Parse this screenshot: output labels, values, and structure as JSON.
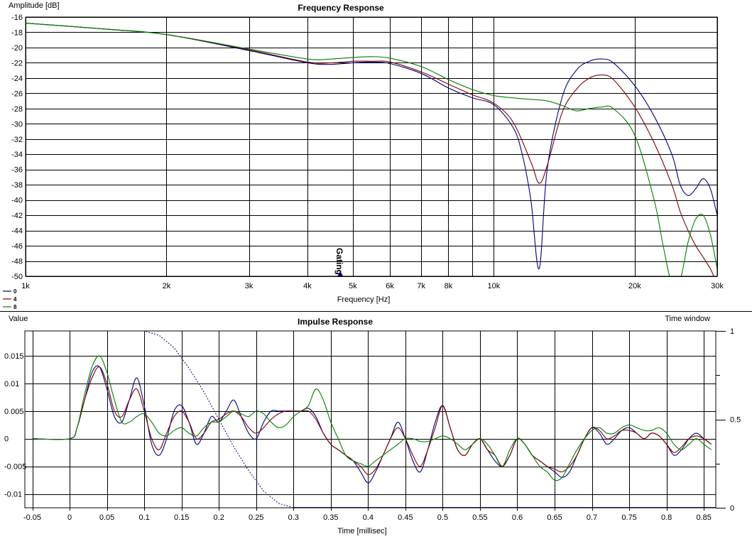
{
  "chart_data": [
    {
      "type": "line",
      "title": "Frequency Response",
      "ylabel": "Amplitude [dB]",
      "xlabel": "Frequency [Hz]",
      "x_scale": "log",
      "xlim": [
        1000,
        30000
      ],
      "ylim": [
        -50,
        -16
      ],
      "x_ticks": [
        1000,
        2000,
        3000,
        4000,
        5000,
        6000,
        7000,
        8000,
        9000,
        10000,
        20000,
        30000
      ],
      "x_tick_labels": [
        "1k",
        "2k",
        "3k",
        "4k",
        "5k",
        "6k",
        "7k",
        "8k",
        "",
        "10k",
        "20k",
        "30k"
      ],
      "y_ticks": [
        -16,
        -18,
        -20,
        -22,
        -24,
        -26,
        -28,
        -30,
        -32,
        -34,
        -36,
        -38,
        -40,
        -42,
        -44,
        -46,
        -48,
        -50
      ],
      "y_tick_labels": [
        "-16",
        "-18",
        "-20",
        "-22",
        "-24",
        "-26",
        "-28",
        "-30",
        "-32",
        "-34",
        "-36",
        "-38",
        "-40",
        "-42",
        "-44",
        "-46",
        "-48",
        "-50"
      ],
      "grid": true,
      "marker": {
        "label": "Gating",
        "x": 4700,
        "color": "#00008b"
      },
      "legend": {
        "position": "bottom-left",
        "entries": [
          "0",
          "4",
          "8"
        ]
      },
      "series": [
        {
          "name": "0",
          "color": "#00007f",
          "x": [
            1000,
            1500,
            2000,
            3000,
            4000,
            4500,
            5000,
            5500,
            6000,
            7000,
            8000,
            9000,
            10000,
            11000,
            11500,
            12000,
            12500,
            13000,
            14000,
            15000,
            16000,
            17000,
            18000,
            20000,
            22000,
            24000,
            25000,
            26000,
            27000,
            28000,
            29000,
            30000
          ],
          "y": [
            -16.8,
            -17.6,
            -18.3,
            -20.4,
            -22.0,
            -22.2,
            -22.0,
            -21.9,
            -22.1,
            -23.4,
            -25.3,
            -26.6,
            -27.5,
            -30.5,
            -34.0,
            -40.0,
            -49.0,
            -36.0,
            -26.5,
            -23.0,
            -21.8,
            -21.5,
            -22.0,
            -25.0,
            -29.0,
            -34.0,
            -38.0,
            -39.4,
            -38.5,
            -37.2,
            -38.5,
            -42.0
          ]
        },
        {
          "name": "4",
          "color": "#7f0000",
          "x": [
            1000,
            1500,
            2000,
            3000,
            4000,
            4500,
            5000,
            5500,
            6000,
            7000,
            8000,
            9000,
            10000,
            11000,
            12000,
            12500,
            13000,
            14000,
            15000,
            16000,
            17000,
            18000,
            20000,
            22000,
            24000,
            25000,
            26000,
            27000,
            28000,
            29000,
            29500
          ],
          "y": [
            -16.8,
            -17.6,
            -18.3,
            -20.3,
            -21.9,
            -22.0,
            -21.8,
            -21.8,
            -21.9,
            -23.2,
            -24.8,
            -26.2,
            -27.3,
            -29.8,
            -35.0,
            -37.8,
            -35.5,
            -28.5,
            -25.5,
            -24.0,
            -23.6,
            -24.2,
            -27.8,
            -32.5,
            -38.0,
            -41.5,
            -44.0,
            -46.0,
            -47.5,
            -49.0,
            -50.0
          ]
        },
        {
          "name": "8",
          "color": "#007f00",
          "x": [
            1000,
            1500,
            2000,
            3000,
            4000,
            4500,
            5000,
            5500,
            6000,
            7000,
            8000,
            9000,
            10000,
            11000,
            12000,
            13000,
            14000,
            15000,
            16000,
            17000,
            18000,
            20000,
            22000,
            23000,
            24000,
            25000,
            26000,
            27000,
            28000,
            29000,
            30000
          ],
          "y": [
            -16.8,
            -17.6,
            -18.3,
            -20.2,
            -21.5,
            -21.5,
            -21.3,
            -21.2,
            -21.4,
            -22.5,
            -24.2,
            -25.5,
            -26.3,
            -26.6,
            -26.8,
            -27.0,
            -27.6,
            -28.3,
            -28.0,
            -27.8,
            -28.0,
            -31.5,
            -40.0,
            -46.0,
            -51.0,
            -50.5,
            -45.5,
            -42.5,
            -42.0,
            -44.5,
            -49.0
          ]
        }
      ]
    },
    {
      "type": "line",
      "title": "Impulse Response",
      "ylabel": "Value",
      "xlabel": "Time [millisec]",
      "y2label": "Time window",
      "xlim": [
        -0.06,
        0.866
      ],
      "ylim": [
        -0.0125,
        0.0195
      ],
      "y2lim": [
        0,
        1
      ],
      "x_ticks": [
        -0.05,
        0,
        0.05,
        0.1,
        0.15,
        0.2,
        0.25,
        0.3,
        0.35,
        0.4,
        0.45,
        0.5,
        0.55,
        0.6,
        0.65,
        0.7,
        0.75,
        0.8,
        0.85
      ],
      "x_tick_labels": [
        "-0.05",
        "0",
        "0.05",
        "0.1",
        "0.15",
        "0.2",
        "0.25",
        "0.3",
        "0.35",
        "0.4",
        "0.45",
        "0.5",
        "0.55",
        "0.6",
        "0.65",
        "0.7",
        "0.75",
        "0.8",
        "0.85"
      ],
      "y_ticks": [
        0.015,
        0.01,
        0.005,
        0,
        -0.005,
        -0.01
      ],
      "y_tick_labels": [
        "0.015",
        "0.01",
        "0.005",
        "0",
        "-0.005",
        "-0.01"
      ],
      "y2_ticks": [
        1,
        0.5,
        0
      ],
      "y2_tick_labels": [
        "1",
        "0.5",
        "0"
      ],
      "grid": true,
      "window": {
        "color": "#00008b",
        "x": [
          -0.05,
          0.1,
          0.12,
          0.14,
          0.16,
          0.18,
          0.2,
          0.22,
          0.24,
          0.26,
          0.28,
          0.3
        ],
        "y": [
          1.0,
          1.0,
          0.975,
          0.905,
          0.79,
          0.655,
          0.5,
          0.345,
          0.21,
          0.095,
          0.025,
          0.0
        ]
      },
      "series": [
        {
          "name": "0",
          "color": "#00007f",
          "x": [
            -0.05,
            0,
            0.01,
            0.02,
            0.03,
            0.04,
            0.05,
            0.06,
            0.07,
            0.08,
            0.09,
            0.1,
            0.11,
            0.12,
            0.13,
            0.14,
            0.15,
            0.16,
            0.17,
            0.18,
            0.19,
            0.2,
            0.21,
            0.22,
            0.23,
            0.24,
            0.25,
            0.26,
            0.27,
            0.28,
            0.29,
            0.3,
            0.31,
            0.32,
            0.33,
            0.34,
            0.35,
            0.36,
            0.37,
            0.38,
            0.39,
            0.4,
            0.41,
            0.42,
            0.43,
            0.44,
            0.45,
            0.46,
            0.47,
            0.48,
            0.49,
            0.5,
            0.51,
            0.52,
            0.53,
            0.54,
            0.55,
            0.56,
            0.57,
            0.58,
            0.59,
            0.6,
            0.61,
            0.62,
            0.63,
            0.64,
            0.65,
            0.66,
            0.67,
            0.68,
            0.69,
            0.7,
            0.71,
            0.72,
            0.73,
            0.74,
            0.75,
            0.76,
            0.77,
            0.78,
            0.79,
            0.8,
            0.81,
            0.82,
            0.83,
            0.84,
            0.85,
            0.86
          ],
          "y": [
            0,
            0,
            0.002,
            0.007,
            0.012,
            0.013,
            0.009,
            0.004,
            0.003,
            0.007,
            0.011,
            0.006,
            -0.001,
            -0.003,
            0,
            0.005,
            0.006,
            0.003,
            -0.001,
            0.001,
            0.004,
            0.003,
            0.005,
            0.007,
            0.004,
            0.001,
            0,
            0.003,
            0.005,
            0.005,
            0.005,
            0.005,
            0.005,
            0.0055,
            0.004,
            0.001,
            -0.001,
            -0.002,
            -0.003,
            -0.004,
            -0.006,
            -0.008,
            -0.006,
            -0.003,
            0,
            0.003,
            0,
            -0.004,
            -0.006,
            -0.002,
            0.003,
            0.006,
            0.002,
            -0.002,
            -0.003,
            -0.001,
            0,
            -0.002,
            -0.004,
            -0.005,
            -0.003,
            0,
            -0.001,
            -0.003,
            -0.004,
            -0.005,
            -0.006,
            -0.007,
            -0.006,
            -0.003,
            0,
            0.002,
            0.001,
            -0.001,
            0,
            0.0015,
            0.002,
            0.001,
            0,
            0.001,
            0.0005,
            -0.001,
            -0.003,
            -0.002,
            0,
            0.001,
            0,
            -0.001
          ]
        },
        {
          "name": "4",
          "color": "#7f0000",
          "x": [
            -0.05,
            0,
            0.01,
            0.02,
            0.03,
            0.04,
            0.05,
            0.06,
            0.07,
            0.08,
            0.09,
            0.1,
            0.11,
            0.12,
            0.13,
            0.14,
            0.15,
            0.16,
            0.17,
            0.18,
            0.19,
            0.2,
            0.21,
            0.22,
            0.23,
            0.24,
            0.25,
            0.26,
            0.27,
            0.28,
            0.29,
            0.3,
            0.31,
            0.32,
            0.33,
            0.34,
            0.35,
            0.36,
            0.37,
            0.38,
            0.39,
            0.4,
            0.41,
            0.42,
            0.43,
            0.44,
            0.45,
            0.46,
            0.47,
            0.48,
            0.49,
            0.5,
            0.51,
            0.52,
            0.53,
            0.54,
            0.55,
            0.56,
            0.57,
            0.58,
            0.59,
            0.6,
            0.61,
            0.62,
            0.63,
            0.64,
            0.65,
            0.66,
            0.67,
            0.68,
            0.69,
            0.7,
            0.71,
            0.72,
            0.73,
            0.74,
            0.75,
            0.76,
            0.77,
            0.78,
            0.79,
            0.8,
            0.81,
            0.82,
            0.83,
            0.84,
            0.85,
            0.86
          ],
          "y": [
            0,
            0,
            0.002,
            0.007,
            0.011,
            0.013,
            0.01,
            0.005,
            0.004,
            0.007,
            0.009,
            0.005,
            0,
            -0.002,
            0.001,
            0.004,
            0.005,
            0.003,
            0,
            0.001,
            0.003,
            0.0035,
            0.0045,
            0.005,
            0.004,
            0.002,
            0.001,
            0.002,
            0.0035,
            0.0045,
            0.005,
            0.005,
            0.005,
            0.005,
            0.0035,
            0.001,
            -0.001,
            -0.002,
            -0.003,
            -0.004,
            -0.005,
            -0.0065,
            -0.0055,
            -0.003,
            0,
            0.002,
            0,
            -0.003,
            -0.005,
            -0.002,
            0.002,
            0.006,
            0.002,
            -0.002,
            -0.003,
            -0.001,
            0,
            -0.002,
            -0.003,
            -0.005,
            -0.003,
            0,
            -0.001,
            -0.003,
            -0.004,
            -0.005,
            -0.0055,
            -0.006,
            -0.005,
            -0.003,
            0,
            0.002,
            0.0015,
            0,
            0.0005,
            0.0015,
            0.0015,
            0.001,
            0,
            0.001,
            0.0005,
            -0.001,
            -0.0025,
            -0.0015,
            0,
            0.0005,
            0,
            -0.001
          ]
        },
        {
          "name": "8",
          "color": "#007f00",
          "x": [
            -0.05,
            0,
            0.01,
            0.02,
            0.03,
            0.04,
            0.05,
            0.06,
            0.07,
            0.08,
            0.09,
            0.1,
            0.11,
            0.12,
            0.13,
            0.14,
            0.15,
            0.16,
            0.17,
            0.18,
            0.19,
            0.2,
            0.21,
            0.22,
            0.23,
            0.24,
            0.25,
            0.26,
            0.27,
            0.28,
            0.29,
            0.3,
            0.31,
            0.32,
            0.33,
            0.34,
            0.35,
            0.36,
            0.37,
            0.38,
            0.39,
            0.4,
            0.41,
            0.42,
            0.43,
            0.44,
            0.45,
            0.46,
            0.47,
            0.48,
            0.49,
            0.5,
            0.51,
            0.52,
            0.53,
            0.54,
            0.55,
            0.56,
            0.57,
            0.58,
            0.59,
            0.6,
            0.61,
            0.62,
            0.63,
            0.64,
            0.65,
            0.66,
            0.67,
            0.68,
            0.69,
            0.7,
            0.71,
            0.72,
            0.73,
            0.74,
            0.75,
            0.76,
            0.77,
            0.78,
            0.79,
            0.8,
            0.81,
            0.82,
            0.83,
            0.84,
            0.85,
            0.86
          ],
          "y": [
            0,
            0,
            0.002,
            0.008,
            0.013,
            0.015,
            0.012,
            0.007,
            0.003,
            0.003,
            0.004,
            0.0045,
            0.003,
            0.001,
            0.0005,
            0.0015,
            0.002,
            0.001,
            0.0005,
            0.002,
            0.003,
            0.003,
            0.004,
            0.005,
            0.0045,
            0.004,
            0.005,
            0.0045,
            0.003,
            0.002,
            0.0025,
            0.004,
            0.005,
            0.006,
            0.009,
            0.007,
            0.003,
            0,
            -0.003,
            -0.004,
            -0.0045,
            -0.005,
            -0.004,
            -0.003,
            -0.002,
            -0.001,
            0,
            0,
            -0.0005,
            -0.0005,
            0,
            0.0005,
            0,
            -0.001,
            -0.002,
            -0.001,
            0,
            -0.001,
            -0.003,
            -0.005,
            -0.002,
            0,
            -0.001,
            -0.003,
            -0.005,
            -0.006,
            -0.0075,
            -0.007,
            -0.0045,
            -0.002,
            0,
            0.0015,
            0.002,
            0.001,
            0.001,
            0.002,
            0.0025,
            0.002,
            0.0015,
            0.0015,
            0.002,
            0.001,
            -0.001,
            -0.002,
            -0.001,
            0,
            -0.001,
            -0.002
          ]
        }
      ]
    }
  ]
}
